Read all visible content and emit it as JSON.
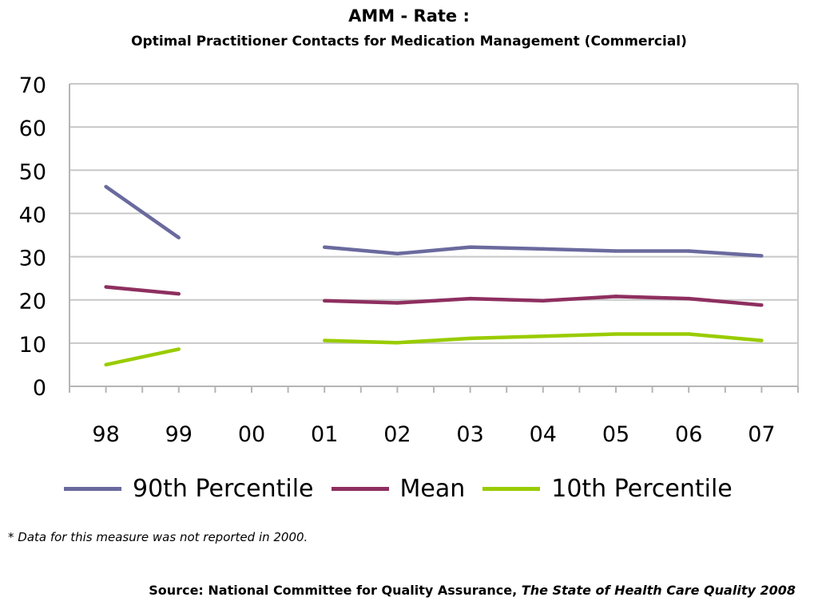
{
  "header": {
    "title": "AMM - Rate :",
    "subtitle": "Optimal Practitioner Contacts for Medication Management (Commercial)"
  },
  "chart_data": {
    "type": "line",
    "title": "AMM - Rate :",
    "subtitle": "Optimal Practitioner Contacts for Medication Management (Commercial)",
    "categories": [
      "98",
      "99",
      "00",
      "01",
      "02",
      "03",
      "04",
      "05",
      "06",
      "07"
    ],
    "ylim": [
      0,
      70
    ],
    "yticks": [
      "0",
      "10",
      "20",
      "30",
      "40",
      "50",
      "60",
      "70"
    ],
    "grid": true,
    "legend_position": "bottom",
    "series": [
      {
        "name": "90th Percentile",
        "color": "#6a6a9e",
        "values": [
          46.2,
          34.4,
          null,
          32.2,
          30.7,
          32.2,
          31.8,
          31.3,
          31.3,
          30.2
        ]
      },
      {
        "name": "Mean",
        "color": "#8e2f5f",
        "values": [
          23.0,
          21.4,
          null,
          19.8,
          19.3,
          20.3,
          19.8,
          20.8,
          20.3,
          18.8
        ]
      },
      {
        "name": "10th Percentile",
        "color": "#99cc00",
        "values": [
          5.0,
          8.6,
          null,
          10.6,
          10.1,
          11.1,
          11.6,
          12.1,
          12.1,
          10.6
        ]
      }
    ]
  },
  "footnote": "* Data for this measure was not reported in 2000.",
  "source": {
    "prefix": "Source: National Committee for Quality Assurance,",
    "publication": "The State of Health Care Quality 2008"
  }
}
